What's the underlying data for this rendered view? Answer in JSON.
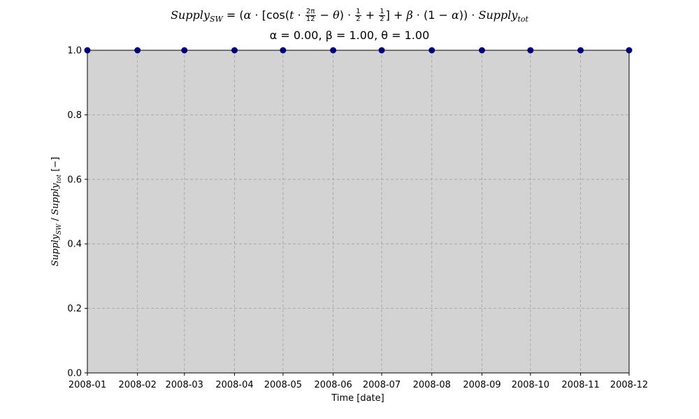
{
  "chart_data": {
    "type": "scatter",
    "title": {
      "supply": "Supply",
      "sw": "SW",
      "tot": "tot",
      "alpha_label": "α = 0.00",
      "beta_label": "β = 1.00",
      "theta_label": "θ = 1.00"
    },
    "xlabel": "Time [date]",
    "ylabel": {
      "supply": "Supply",
      "sw": "SW",
      "tot": "tot",
      "unit": "[−]"
    },
    "x_ticks": [
      "2008-01",
      "2008-02",
      "2008-03",
      "2008-04",
      "2008-05",
      "2008-06",
      "2008-07",
      "2008-08",
      "2008-09",
      "2008-10",
      "2008-11",
      "2008-12"
    ],
    "x_tick_days": [
      0,
      31,
      60,
      91,
      121,
      152,
      182,
      213,
      244,
      274,
      305,
      335
    ],
    "xlim": [
      "2008-01-01",
      "2008-12-01"
    ],
    "ylim": [
      0,
      1
    ],
    "y_ticks": [
      "0.0",
      "0.2",
      "0.4",
      "0.6",
      "0.8",
      "1.0"
    ],
    "grid": true,
    "series": [
      {
        "x": [
          "2008-01-01",
          "2008-02-01",
          "2008-03-01",
          "2008-04-01",
          "2008-05-01",
          "2008-06-01",
          "2008-07-01",
          "2008-08-01",
          "2008-09-01",
          "2008-10-01",
          "2008-11-01",
          "2008-12-01"
        ],
        "y": [
          1.0,
          1.0,
          1.0,
          1.0,
          1.0,
          1.0,
          1.0,
          1.0,
          1.0,
          1.0,
          1.0,
          1.0
        ]
      }
    ],
    "colors": {
      "plot_background": "#d3d3d3",
      "marker_fill": "#00008b",
      "grid": "#a0a0a0"
    }
  }
}
